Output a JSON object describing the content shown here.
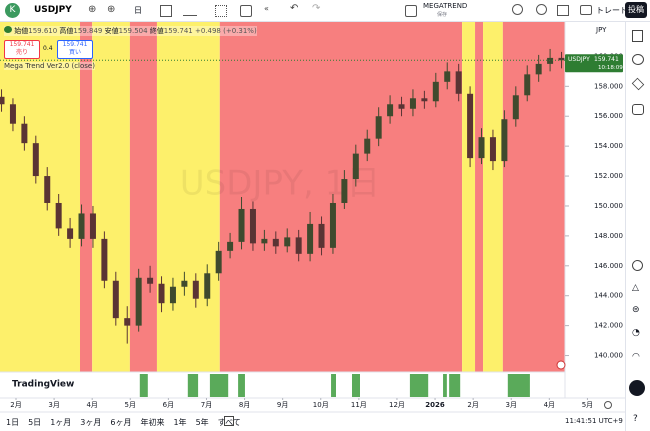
{
  "toolbar": {
    "symbol": "USDJPY",
    "interval": "日",
    "layout_name": "MEGATREND",
    "layout_status": "保存",
    "trade": "トレード",
    "post": "投稿"
  },
  "legend": {
    "open_label": "始値",
    "open": "159.610",
    "high_label": "高値",
    "high": "159.849",
    "low_label": "安値",
    "low": "159.504",
    "close_label": "終値",
    "close": "159.741",
    "change": "+0.498 (+0.31%)"
  },
  "order_panel": {
    "sell_price": "159.741",
    "sell": "売り",
    "spread": "0.4",
    "buy_price": "159.741",
    "buy": "買い"
  },
  "indicator_label": "Mega Trend Ver2.0 (close)",
  "watermark": "USDJPY, 1日",
  "logo": "TradingView",
  "chart_data": {
    "type": "candlestick",
    "x": [
      0.62,
      0.92,
      1.22,
      1.52,
      1.82,
      2.12,
      2.42,
      2.72,
      3.02,
      3.32,
      3.62,
      3.92,
      4.22,
      4.52,
      4.82,
      5.12,
      5.42,
      5.72,
      6.02,
      6.32,
      6.62,
      6.92,
      7.22,
      7.52,
      7.82,
      8.12,
      8.42,
      8.72,
      9.02,
      9.32,
      9.62,
      9.92,
      10.22,
      10.52,
      10.82,
      11.12,
      11.42,
      11.72,
      12.02,
      12.32,
      12.62,
      12.92,
      13.22,
      13.52,
      13.82,
      14.12,
      14.42,
      14.72,
      15.02,
      15.32
    ],
    "candles": [
      [
        157.3,
        157.8,
        156.3,
        156.8
      ],
      [
        156.8,
        157.2,
        155.0,
        155.5
      ],
      [
        155.5,
        156.0,
        153.7,
        154.2
      ],
      [
        154.2,
        154.7,
        151.5,
        152.0
      ],
      [
        152.0,
        152.6,
        149.7,
        150.2
      ],
      [
        150.2,
        150.8,
        148.0,
        148.5
      ],
      [
        148.5,
        149.2,
        147.2,
        147.8
      ],
      [
        147.8,
        150.1,
        147.3,
        149.5
      ],
      [
        149.5,
        150.0,
        147.2,
        147.8
      ],
      [
        147.8,
        148.3,
        144.5,
        145.0
      ],
      [
        145.0,
        145.6,
        142.0,
        142.5
      ],
      [
        142.5,
        143.3,
        140.8,
        142.0
      ],
      [
        142.0,
        145.8,
        141.6,
        145.2
      ],
      [
        145.2,
        146.0,
        144.2,
        144.8
      ],
      [
        144.8,
        145.3,
        142.9,
        143.5
      ],
      [
        143.5,
        145.2,
        143.0,
        144.6
      ],
      [
        144.6,
        145.6,
        144.0,
        145.0
      ],
      [
        145.0,
        145.5,
        143.2,
        143.8
      ],
      [
        143.8,
        146.1,
        143.3,
        145.5
      ],
      [
        145.5,
        147.6,
        145.0,
        147.0
      ],
      [
        147.0,
        148.2,
        146.5,
        147.6
      ],
      [
        147.6,
        150.6,
        147.1,
        149.8
      ],
      [
        149.8,
        150.3,
        147.0,
        147.5
      ],
      [
        147.5,
        148.4,
        147.0,
        147.8
      ],
      [
        147.8,
        148.3,
        146.8,
        147.3
      ],
      [
        147.3,
        148.5,
        146.9,
        147.9
      ],
      [
        147.9,
        148.4,
        146.3,
        146.8
      ],
      [
        146.8,
        149.6,
        146.3,
        148.8
      ],
      [
        148.8,
        149.3,
        146.7,
        147.2
      ],
      [
        147.2,
        150.8,
        146.8,
        150.2
      ],
      [
        150.2,
        152.4,
        149.8,
        151.8
      ],
      [
        151.8,
        154.1,
        151.3,
        153.5
      ],
      [
        153.5,
        155.1,
        153.0,
        154.5
      ],
      [
        154.5,
        156.6,
        154.0,
        156.0
      ],
      [
        156.0,
        157.4,
        155.5,
        156.8
      ],
      [
        156.8,
        157.3,
        156.0,
        156.5
      ],
      [
        156.5,
        157.8,
        156.0,
        157.2
      ],
      [
        157.2,
        157.7,
        156.5,
        157.0
      ],
      [
        157.0,
        158.9,
        156.6,
        158.3
      ],
      [
        158.3,
        159.6,
        157.8,
        159.0
      ],
      [
        159.0,
        159.5,
        157.0,
        157.5
      ],
      [
        157.5,
        158.0,
        152.6,
        153.2
      ],
      [
        153.2,
        155.2,
        152.8,
        154.6
      ],
      [
        154.6,
        155.1,
        152.4,
        153.0
      ],
      [
        153.0,
        156.4,
        152.6,
        155.8
      ],
      [
        155.8,
        158.0,
        155.3,
        157.4
      ],
      [
        157.4,
        159.4,
        157.0,
        158.8
      ],
      [
        158.8,
        160.1,
        158.3,
        159.5
      ],
      [
        159.5,
        160.5,
        159.0,
        159.9
      ],
      [
        159.9,
        160.3,
        159.2,
        159.741
      ]
    ],
    "up_color": "#3f4a2e",
    "down_color": "#5a3434",
    "zones": [
      {
        "start": 0.58,
        "end": 2.68,
        "color": "#fdf06b"
      },
      {
        "start": 2.68,
        "end": 3.0,
        "color": "#f77f7f"
      },
      {
        "start": 3.0,
        "end": 3.99,
        "color": "#fdf06b"
      },
      {
        "start": 3.99,
        "end": 4.7,
        "color": "#f77f7f"
      },
      {
        "start": 4.7,
        "end": 6.35,
        "color": "#fdf06b"
      },
      {
        "start": 6.35,
        "end": 12.71,
        "color": "#f77f7f"
      },
      {
        "start": 12.71,
        "end": 13.05,
        "color": "#fdf06b"
      },
      {
        "start": 13.05,
        "end": 13.26,
        "color": "#f77f7f"
      },
      {
        "start": 13.26,
        "end": 13.78,
        "color": "#fdf06b"
      },
      {
        "start": 13.78,
        "end": 15.41,
        "color": "#f77f7f"
      }
    ],
    "signals": [
      {
        "start": 4.25,
        "end": 4.46
      },
      {
        "start": 5.51,
        "end": 5.78
      },
      {
        "start": 6.09,
        "end": 6.57
      },
      {
        "start": 6.83,
        "end": 7.01
      },
      {
        "start": 9.27,
        "end": 9.4
      },
      {
        "start": 9.82,
        "end": 10.03
      },
      {
        "start": 11.34,
        "end": 11.82
      },
      {
        "start": 12.21,
        "end": 12.31
      },
      {
        "start": 12.37,
        "end": 12.66
      },
      {
        "start": 13.91,
        "end": 14.49
      }
    ],
    "signal_color": "#5aaa5a",
    "xlim": [
      0.58,
      16.33
    ],
    "xticks": [
      {
        "value": 1,
        "label": "2月"
      },
      {
        "value": 2,
        "label": "3月"
      },
      {
        "value": 3,
        "label": "4月"
      },
      {
        "value": 4,
        "label": "5月"
      },
      {
        "value": 5,
        "label": "6月"
      },
      {
        "value": 6,
        "label": "7月"
      },
      {
        "value": 7,
        "label": "8月"
      },
      {
        "value": 8,
        "label": "9月"
      },
      {
        "value": 9,
        "label": "10月"
      },
      {
        "value": 10,
        "label": "11月"
      },
      {
        "value": 11,
        "label": "12月"
      },
      {
        "value": 12,
        "label": "2026"
      },
      {
        "value": 13,
        "label": "2月"
      },
      {
        "value": 14,
        "label": "3月"
      },
      {
        "value": 15,
        "label": "4月"
      },
      {
        "value": 16,
        "label": "5月"
      }
    ],
    "ylim": [
      138.9,
      162.3
    ],
    "yticks": [
      {
        "value": 140,
        "label": "140.000"
      },
      {
        "value": 142,
        "label": "142.000"
      },
      {
        "value": 144,
        "label": "144.000"
      },
      {
        "value": 146,
        "label": "146.000"
      },
      {
        "value": 148,
        "label": "148.000"
      },
      {
        "value": 150,
        "label": "150.000"
      },
      {
        "value": 152,
        "label": "152.000"
      },
      {
        "value": 154,
        "label": "154.000"
      },
      {
        "value": 156,
        "label": "156.000"
      },
      {
        "value": 158,
        "label": "158.000"
      },
      {
        "value": 160,
        "label": "160.000"
      }
    ],
    "currency": "JPY",
    "countdown": "10:18:09"
  },
  "range_buttons": [
    "1日",
    "5日",
    "1ヶ月",
    "3ヶ月",
    "6ヶ月",
    "年初来",
    "1年",
    "5年",
    "すべて"
  ],
  "clock": "11:41:51 UTC+9"
}
